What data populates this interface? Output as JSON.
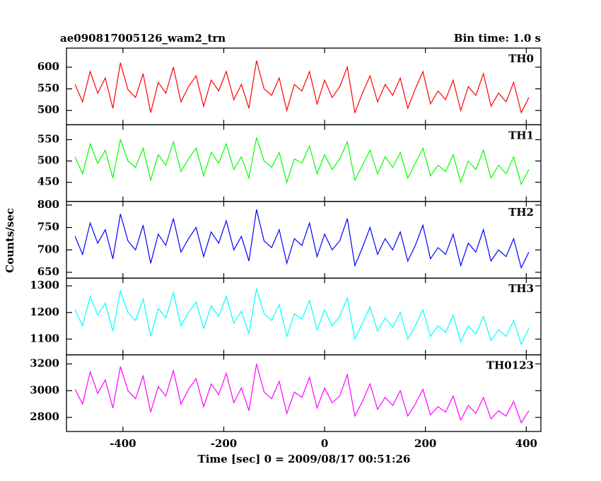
{
  "chart_data": {
    "type": "line",
    "title": "ae090817005126_wam2_trn",
    "subtitle": "Bin time: 1.0 s",
    "xlabel": "Time [sec] 0 = 2009/08/17 00:51:26",
    "ylabel": "Counts/sec",
    "xlim": [
      -512,
      429
    ],
    "xticks": [
      -400,
      -200,
      0,
      200,
      400
    ],
    "x": [
      -495,
      -480,
      -465,
      -450,
      -435,
      -420,
      -405,
      -390,
      -375,
      -360,
      -345,
      -330,
      -315,
      -300,
      -285,
      -270,
      -255,
      -240,
      -225,
      -210,
      -195,
      -180,
      -165,
      -150,
      -135,
      -120,
      -105,
      -90,
      -75,
      -60,
      -45,
      -30,
      -15,
      0,
      15,
      30,
      45,
      60,
      75,
      90,
      105,
      120,
      135,
      150,
      165,
      180,
      195,
      210,
      225,
      240,
      255,
      270,
      285,
      300,
      315,
      330,
      345,
      360,
      375,
      390,
      405
    ],
    "series": [
      {
        "name": "TH0",
        "color": "#ff0000",
        "ylim": [
          467,
          644
        ],
        "yticks": [
          500,
          550,
          600
        ],
        "values": [
          560,
          520,
          590,
          540,
          575,
          505,
          610,
          548,
          530,
          585,
          495,
          565,
          540,
          600,
          520,
          555,
          580,
          510,
          570,
          545,
          590,
          525,
          560,
          505,
          615,
          550,
          535,
          575,
          500,
          560,
          545,
          590,
          515,
          570,
          530,
          555,
          600,
          495,
          540,
          580,
          520,
          560,
          535,
          575,
          505,
          550,
          590,
          515,
          545,
          525,
          570,
          500,
          555,
          535,
          585,
          510,
          540,
          520,
          565,
          495,
          530
        ]
      },
      {
        "name": "TH1",
        "color": "#00ff00",
        "ylim": [
          405,
          585
        ],
        "yticks": [
          450,
          500,
          550
        ],
        "values": [
          510,
          470,
          540,
          495,
          525,
          460,
          550,
          500,
          485,
          530,
          455,
          515,
          490,
          545,
          475,
          505,
          530,
          465,
          520,
          495,
          540,
          480,
          510,
          460,
          555,
          500,
          485,
          520,
          450,
          505,
          495,
          535,
          470,
          515,
          480,
          505,
          545,
          455,
          490,
          525,
          470,
          510,
          485,
          520,
          460,
          495,
          530,
          465,
          490,
          475,
          515,
          450,
          500,
          480,
          525,
          460,
          490,
          470,
          510,
          445,
          480
        ]
      },
      {
        "name": "TH2",
        "color": "#0000ff",
        "ylim": [
          637,
          808
        ],
        "yticks": [
          650,
          700,
          750,
          800
        ],
        "values": [
          730,
          690,
          760,
          715,
          745,
          680,
          780,
          720,
          700,
          755,
          670,
          735,
          710,
          770,
          695,
          725,
          750,
          685,
          740,
          715,
          765,
          700,
          730,
          675,
          790,
          720,
          705,
          745,
          670,
          725,
          710,
          760,
          685,
          735,
          700,
          720,
          770,
          665,
          705,
          750,
          690,
          725,
          700,
          740,
          675,
          710,
          755,
          680,
          705,
          690,
          735,
          665,
          715,
          695,
          745,
          675,
          700,
          685,
          725,
          660,
          695
        ]
      },
      {
        "name": "TH3",
        "color": "#00ffff",
        "ylim": [
          1041,
          1329
        ],
        "yticks": [
          1100,
          1200,
          1300
        ],
        "values": [
          1210,
          1150,
          1260,
          1190,
          1235,
          1130,
          1280,
          1200,
          1170,
          1250,
          1110,
          1215,
          1180,
          1275,
          1150,
          1200,
          1240,
          1140,
          1225,
          1185,
          1260,
          1160,
          1205,
          1120,
          1290,
          1195,
          1170,
          1230,
          1110,
          1195,
          1175,
          1245,
          1135,
          1210,
          1150,
          1185,
          1255,
          1100,
          1160,
          1220,
          1130,
          1180,
          1145,
          1200,
          1100,
          1150,
          1210,
          1110,
          1150,
          1125,
          1190,
          1090,
          1150,
          1120,
          1185,
          1095,
          1135,
          1110,
          1170,
          1080,
          1140
        ]
      },
      {
        "name": "TH0123",
        "color": "#ff00ff",
        "ylim": [
          2695,
          3268
        ],
        "yticks": [
          2800,
          3000,
          3200
        ],
        "values": [
          3010,
          2900,
          3140,
          2980,
          3080,
          2870,
          3180,
          3000,
          2940,
          3110,
          2840,
          3030,
          2960,
          3150,
          2900,
          3010,
          3090,
          2880,
          3050,
          2970,
          3130,
          2910,
          3020,
          2850,
          3200,
          2990,
          2940,
          3070,
          2830,
          2990,
          2950,
          3100,
          2870,
          3020,
          2910,
          2960,
          3120,
          2810,
          2920,
          3050,
          2860,
          2950,
          2890,
          3000,
          2810,
          2900,
          3010,
          2820,
          2880,
          2840,
          2960,
          2780,
          2890,
          2830,
          2950,
          2790,
          2850,
          2810,
          2920,
          2760,
          2850
        ]
      }
    ]
  }
}
